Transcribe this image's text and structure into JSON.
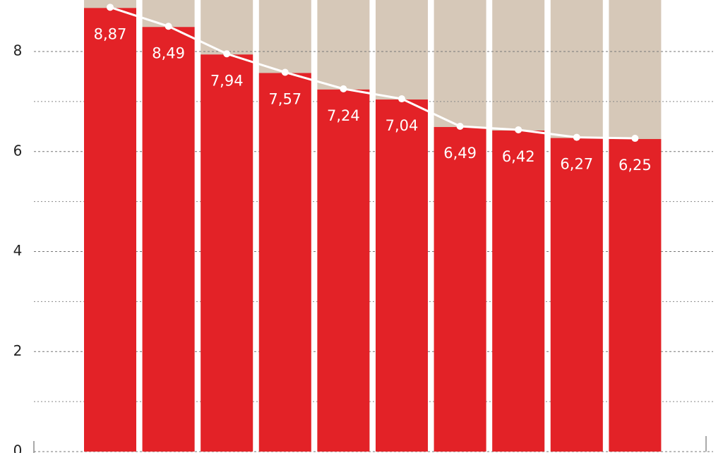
{
  "chart_data": {
    "type": "bar",
    "values": [
      8.87,
      8.49,
      7.94,
      7.57,
      7.24,
      7.04,
      6.49,
      6.42,
      6.27,
      6.25
    ],
    "value_labels": [
      "8,87",
      "8,49",
      "7,94",
      "7,57",
      "7,24",
      "7,04",
      "6,49",
      "6,42",
      "6,27",
      "6,25"
    ],
    "color": "#e32227",
    "column_color": "#d6c8b8",
    "line_color": "#ffffff",
    "ylim": [
      0,
      9.03
    ],
    "yticks": [
      0,
      2,
      4,
      6,
      8
    ],
    "minor_yticks": [
      1,
      3,
      5,
      7
    ],
    "grid": true
  }
}
